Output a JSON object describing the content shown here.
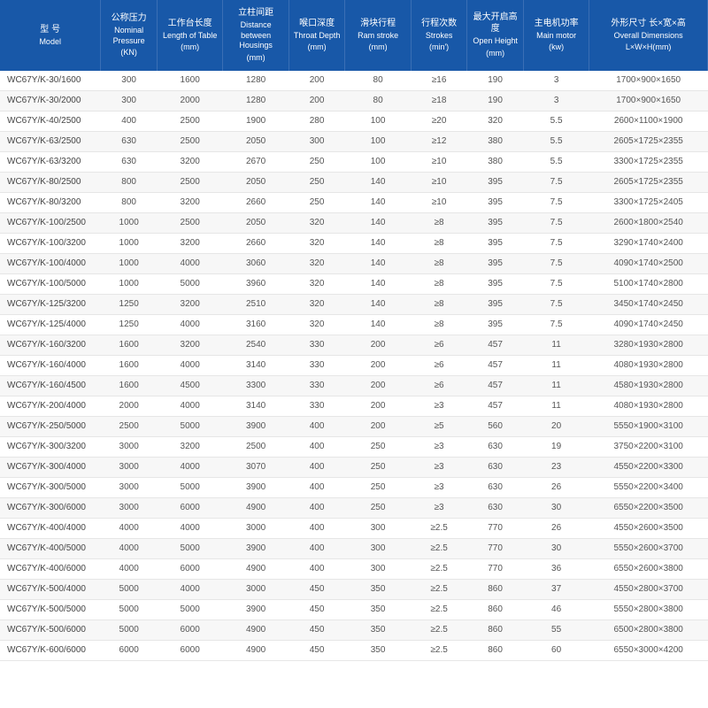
{
  "table": {
    "header_bg": "#1858a8",
    "header_fg": "#ffffff",
    "row_even_bg": "#f7f7f7",
    "row_odd_bg": "#ffffff",
    "cell_fg": "#555555",
    "columns": [
      {
        "cn": "型 号",
        "en": "Model",
        "unit": ""
      },
      {
        "cn": "公称压力",
        "en": "Nominal Pressure",
        "unit": "(KN)"
      },
      {
        "cn": "工作台长度",
        "en": "Length of Table",
        "unit": "(mm)"
      },
      {
        "cn": "立柱间距",
        "en": "Distance between Housings",
        "unit": "(mm)"
      },
      {
        "cn": "喉口深度",
        "en": "Throat Depth",
        "unit": "(mm)"
      },
      {
        "cn": "滑块行程",
        "en": "Ram stroke",
        "unit": "(mm)"
      },
      {
        "cn": "行程次数",
        "en": "Strokes",
        "unit": "(min')"
      },
      {
        "cn": "最大开启高度",
        "en": "Open Height",
        "unit": "(mm)"
      },
      {
        "cn": "主电机功率",
        "en": "Main motor",
        "unit": "(kw)"
      },
      {
        "cn": "外形尺寸 长×宽×高",
        "en": "Overall Dimensions",
        "unit": "L×W×H(mm)"
      }
    ],
    "rows": [
      [
        "WC67Y/K-30/1600",
        "300",
        "1600",
        "1280",
        "200",
        "80",
        "≥16",
        "190",
        "3",
        "1700×900×1650"
      ],
      [
        "WC67Y/K-30/2000",
        "300",
        "2000",
        "1280",
        "200",
        "80",
        "≥18",
        "190",
        "3",
        "1700×900×1650"
      ],
      [
        "WC67Y/K-40/2500",
        "400",
        "2500",
        "1900",
        "280",
        "100",
        "≥20",
        "320",
        "5.5",
        "2600×1100×1900"
      ],
      [
        "WC67Y/K-63/2500",
        "630",
        "2500",
        "2050",
        "300",
        "100",
        "≥12",
        "380",
        "5.5",
        "2605×1725×2355"
      ],
      [
        "WC67Y/K-63/3200",
        "630",
        "3200",
        "2670",
        "250",
        "100",
        "≥10",
        "380",
        "5.5",
        "3300×1725×2355"
      ],
      [
        "WC67Y/K-80/2500",
        "800",
        "2500",
        "2050",
        "250",
        "140",
        "≥10",
        "395",
        "7.5",
        "2605×1725×2355"
      ],
      [
        "WC67Y/K-80/3200",
        "800",
        "3200",
        "2660",
        "250",
        "140",
        "≥10",
        "395",
        "7.5",
        "3300×1725×2405"
      ],
      [
        "WC67Y/K-100/2500",
        "1000",
        "2500",
        "2050",
        "320",
        "140",
        "≥8",
        "395",
        "7.5",
        "2600×1800×2540"
      ],
      [
        "WC67Y/K-100/3200",
        "1000",
        "3200",
        "2660",
        "320",
        "140",
        "≥8",
        "395",
        "7.5",
        "3290×1740×2400"
      ],
      [
        "WC67Y/K-100/4000",
        "1000",
        "4000",
        "3060",
        "320",
        "140",
        "≥8",
        "395",
        "7.5",
        "4090×1740×2500"
      ],
      [
        "WC67Y/K-100/5000",
        "1000",
        "5000",
        "3960",
        "320",
        "140",
        "≥8",
        "395",
        "7.5",
        "5100×1740×2800"
      ],
      [
        "WC67Y/K-125/3200",
        "1250",
        "3200",
        "2510",
        "320",
        "140",
        "≥8",
        "395",
        "7.5",
        "3450×1740×2450"
      ],
      [
        "WC67Y/K-125/4000",
        "1250",
        "4000",
        "3160",
        "320",
        "140",
        "≥8",
        "395",
        "7.5",
        "4090×1740×2450"
      ],
      [
        "WC67Y/K-160/3200",
        "1600",
        "3200",
        "2540",
        "330",
        "200",
        "≥6",
        "457",
        "11",
        "3280×1930×2800"
      ],
      [
        "WC67Y/K-160/4000",
        "1600",
        "4000",
        "3140",
        "330",
        "200",
        "≥6",
        "457",
        "11",
        "4080×1930×2800"
      ],
      [
        "WC67Y/K-160/4500",
        "1600",
        "4500",
        "3300",
        "330",
        "200",
        "≥6",
        "457",
        "11",
        "4580×1930×2800"
      ],
      [
        "WC67Y/K-200/4000",
        "2000",
        "4000",
        "3140",
        "330",
        "200",
        "≥3",
        "457",
        "11",
        "4080×1930×2800"
      ],
      [
        "WC67Y/K-250/5000",
        "2500",
        "5000",
        "3900",
        "400",
        "200",
        "≥5",
        "560",
        "20",
        "5550×1900×3100"
      ],
      [
        "WC67Y/K-300/3200",
        "3000",
        "3200",
        "2500",
        "400",
        "250",
        "≥3",
        "630",
        "19",
        "3750×2200×3100"
      ],
      [
        "WC67Y/K-300/4000",
        "3000",
        "4000",
        "3070",
        "400",
        "250",
        "≥3",
        "630",
        "23",
        "4550×2200×3300"
      ],
      [
        "WC67Y/K-300/5000",
        "3000",
        "5000",
        "3900",
        "400",
        "250",
        "≥3",
        "630",
        "26",
        "5550×2200×3400"
      ],
      [
        "WC67Y/K-300/6000",
        "3000",
        "6000",
        "4900",
        "400",
        "250",
        "≥3",
        "630",
        "30",
        "6550×2200×3500"
      ],
      [
        "WC67Y/K-400/4000",
        "4000",
        "4000",
        "3000",
        "400",
        "300",
        "≥2.5",
        "770",
        "26",
        "4550×2600×3500"
      ],
      [
        "WC67Y/K-400/5000",
        "4000",
        "5000",
        "3900",
        "400",
        "300",
        "≥2.5",
        "770",
        "30",
        "5550×2600×3700"
      ],
      [
        "WC67Y/K-400/6000",
        "4000",
        "6000",
        "4900",
        "400",
        "300",
        "≥2.5",
        "770",
        "36",
        "6550×2600×3800"
      ],
      [
        "WC67Y/K-500/4000",
        "5000",
        "4000",
        "3000",
        "450",
        "350",
        "≥2.5",
        "860",
        "37",
        "4550×2800×3700"
      ],
      [
        "WC67Y/K-500/5000",
        "5000",
        "5000",
        "3900",
        "450",
        "350",
        "≥2.5",
        "860",
        "46",
        "5550×2800×3800"
      ],
      [
        "WC67Y/K-500/6000",
        "5000",
        "6000",
        "4900",
        "450",
        "350",
        "≥2.5",
        "860",
        "55",
        "6500×2800×3800"
      ],
      [
        "WC67Y/K-600/6000",
        "6000",
        "6000",
        "4900",
        "450",
        "350",
        "≥2.5",
        "860",
        "60",
        "6550×3000×4200"
      ]
    ]
  }
}
